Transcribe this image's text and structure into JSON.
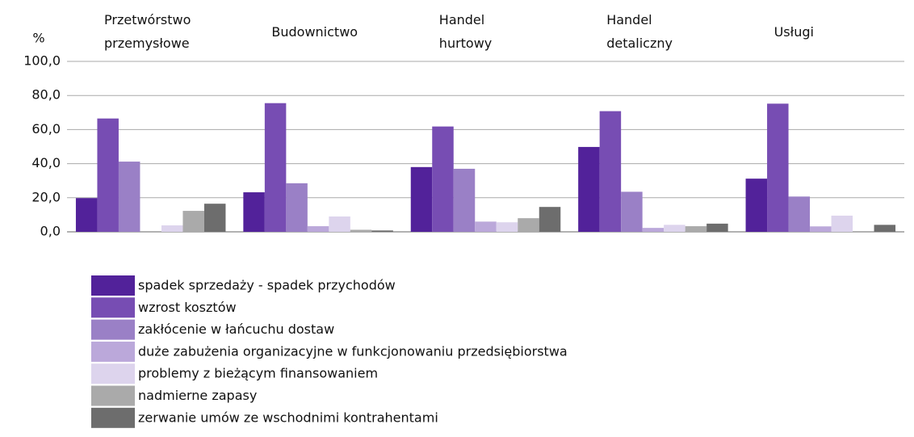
{
  "chart_data": {
    "type": "bar",
    "y_label": "%",
    "categories": [
      "Przetwórstwo\nprzemysłowe",
      "Budownictwo",
      "Handel\nhurtowy",
      "Handel\ndetaliczny",
      "Usługi"
    ],
    "series": [
      {
        "name": "spadek sprzedaży - spadek przychodów",
        "color": "#52229a",
        "values": [
          19.8,
          23.2,
          38.0,
          49.8,
          31.2
        ]
      },
      {
        "name": "wzrost kosztów",
        "color": "#774db3",
        "values": [
          66.5,
          75.5,
          61.8,
          70.8,
          75.2
        ]
      },
      {
        "name": "zakłócenie w łańcuchu dostaw",
        "color": "#9a80c6",
        "values": [
          41.2,
          28.5,
          37.0,
          23.5,
          20.7
        ]
      },
      {
        "name": "duże zabużenia organizacyjne w funkcjonowaniu przedsiębiorstwa",
        "color": "#bba8da",
        "values": [
          0,
          3.3,
          6.0,
          2.3,
          3.2
        ]
      },
      {
        "name": "problemy z bieżącym finansowaniem",
        "color": "#ddd4ed",
        "values": [
          3.8,
          9.0,
          5.6,
          4.1,
          9.5
        ]
      },
      {
        "name": "nadmierne zapasy",
        "color": "#aaaaaa",
        "values": [
          12.3,
          1.2,
          8.0,
          3.3,
          0
        ]
      },
      {
        "name": "zerwanie umów ze wschodnimi kontrahentami",
        "color": "#6d6d6d",
        "values": [
          16.5,
          0.8,
          14.6,
          4.8,
          4.1
        ]
      }
    ],
    "ylim": [
      0,
      100
    ],
    "yticks": [
      {
        "value": 0,
        "label": "0,0"
      },
      {
        "value": 20,
        "label": "20,0"
      },
      {
        "value": 40,
        "label": "40,0"
      },
      {
        "value": 60,
        "label": "60,0"
      },
      {
        "value": 80,
        "label": "80,0"
      },
      {
        "value": 100,
        "label": "100,0"
      }
    ],
    "grid": true
  }
}
